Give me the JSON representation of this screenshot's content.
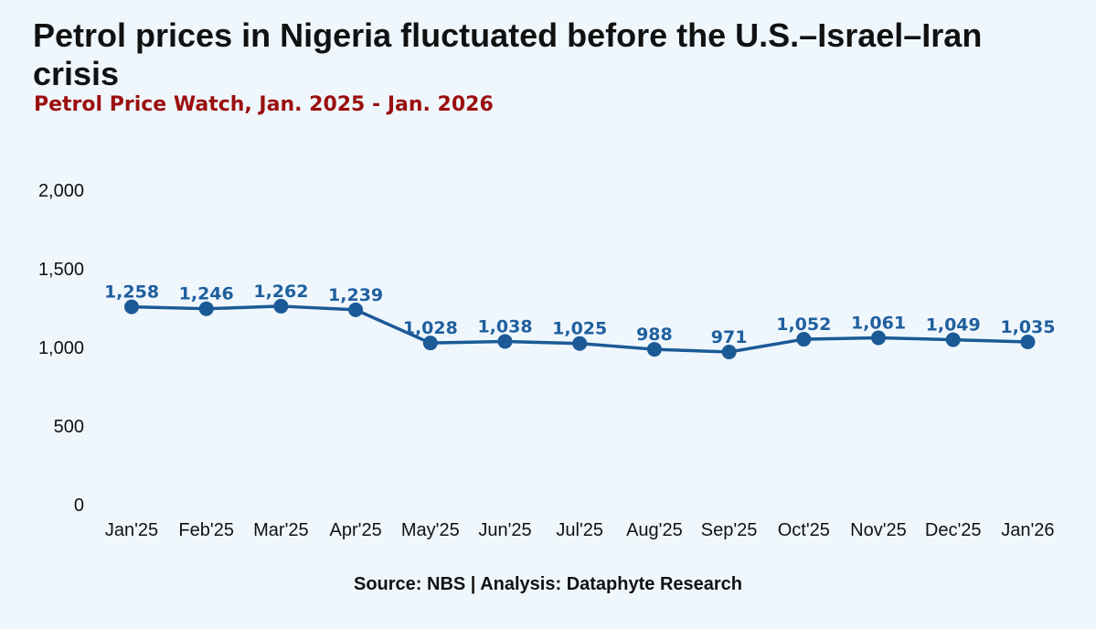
{
  "header": {
    "title": "Petrol prices in Nigeria fluctuated before the U.S.–Israel–Iran crisis",
    "subtitle": "Petrol Price Watch, Jan. 2025 - Jan. 2026"
  },
  "footer": {
    "source": "Source: NBS | Analysis: Dataphyte Research"
  },
  "colors": {
    "background": "#eff7fd",
    "line": "#1b5a96",
    "data_label": "#1f5f9e",
    "subtitle": "#9b0f0f"
  },
  "chart_data": {
    "type": "line",
    "title": "Petrol prices in Nigeria fluctuated before the U.S.–Israel–Iran crisis",
    "subtitle": "Petrol Price Watch, Jan. 2025 - Jan. 2026",
    "xlabel": "",
    "ylabel": "",
    "categories": [
      "Jan'25",
      "Feb'25",
      "Mar'25",
      "Apr'25",
      "May'25",
      "Jun'25",
      "Jul'25",
      "Aug'25",
      "Sep'25",
      "Oct'25",
      "Nov'25",
      "Dec'25",
      "Jan'26"
    ],
    "series": [
      {
        "name": "Petrol price",
        "values": [
          1258,
          1246,
          1262,
          1239,
          1028,
          1038,
          1025,
          988,
          971,
          1052,
          1061,
          1049,
          1035
        ],
        "labels": [
          "1,258",
          "1,246",
          "1,262",
          "1,239",
          "1,028",
          "1,038",
          "1,025",
          "988",
          "971",
          "1,052",
          "1,061",
          "1,049",
          "1,035"
        ]
      }
    ],
    "yticks": [
      0,
      500,
      1000,
      1500,
      2000
    ],
    "ytick_labels": [
      "0",
      "500",
      "1,000",
      "1,500",
      "2,000"
    ],
    "ylim": [
      0,
      2000
    ],
    "grid": false,
    "legend": "none",
    "source": "Source: NBS | Analysis: Dataphyte Research"
  }
}
